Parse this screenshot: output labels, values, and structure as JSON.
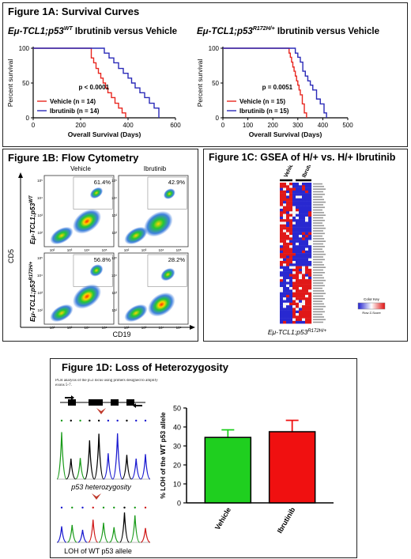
{
  "fig1a": {
    "title": "Figure 1A: Survival Curves",
    "left": {
      "heading_prefix": "Eμ-TCL1;p53",
      "heading_sup": "WT",
      "heading_rest": " Ibrutinib versus Vehicle",
      "pvalue": "p < 0.0001",
      "ylabel": "Percent survival",
      "xlabel": "Overall Survival (Days)",
      "xticks": [
        "0",
        "200",
        "400",
        "600"
      ],
      "yticks": [
        "0",
        "50",
        "100"
      ],
      "legend": [
        {
          "label": "Vehicle (n = 14)",
          "color": "#e8261f"
        },
        {
          "label": "Ibrutinib (n = 14)",
          "color": "#2a2ab8"
        }
      ]
    },
    "right": {
      "heading_prefix": "Eμ-TCL1;p53",
      "heading_sup": "R172H/+",
      "heading_rest": " Ibrutinib versus Vehicle",
      "pvalue": "p = 0.0051",
      "ylabel": "Percent survival",
      "xlabel": "Overall Survival (Days)",
      "xticks": [
        "0",
        "100",
        "200",
        "300",
        "400",
        "500"
      ],
      "yticks": [
        "0",
        "50",
        "100"
      ],
      "legend": [
        {
          "label": "Vehicle (n = 15)",
          "color": "#e8261f"
        },
        {
          "label": "Ibrutinib (n = 15)",
          "color": "#2a2ab8"
        }
      ]
    }
  },
  "chart_data": [
    {
      "type": "line",
      "title": "Eμ-TCL1;p53WT Ibrutinib versus Vehicle",
      "xlabel": "Overall Survival (Days)",
      "ylabel": "Percent survival",
      "xlim": [
        0,
        600
      ],
      "ylim": [
        0,
        100
      ],
      "series": [
        {
          "name": "Vehicle (n = 14)",
          "color": "#e8261f",
          "x": [
            0,
            240,
            245,
            255,
            265,
            275,
            285,
            295,
            305,
            315,
            330,
            345,
            360,
            375,
            390
          ],
          "y": [
            100,
            100,
            86,
            79,
            71,
            64,
            57,
            50,
            43,
            36,
            29,
            21,
            14,
            7,
            0
          ]
        },
        {
          "name": "Ibrutinib (n = 14)",
          "color": "#2a2ab8",
          "x": [
            0,
            280,
            300,
            320,
            340,
            360,
            380,
            400,
            415,
            430,
            450,
            470,
            490,
            510,
            530
          ],
          "y": [
            100,
            100,
            93,
            86,
            79,
            71,
            64,
            57,
            50,
            43,
            36,
            29,
            21,
            14,
            0
          ]
        }
      ]
    },
    {
      "type": "line",
      "title": "Eμ-TCL1;p53R172H/+ Ibrutinib versus Vehicle",
      "xlabel": "Overall Survival (Days)",
      "ylabel": "Percent survival",
      "xlim": [
        0,
        500
      ],
      "ylim": [
        0,
        100
      ],
      "series": [
        {
          "name": "Vehicle (n = 15)",
          "color": "#e8261f",
          "x": [
            0,
            260,
            265,
            270,
            275,
            280,
            285,
            290,
            295,
            300,
            305,
            310,
            318,
            326,
            335
          ],
          "y": [
            100,
            100,
            93,
            87,
            80,
            73,
            67,
            60,
            53,
            47,
            40,
            33,
            20,
            7,
            0
          ]
        },
        {
          "name": "Ibrutinib (n = 15)",
          "color": "#2a2ab8",
          "x": [
            0,
            280,
            290,
            300,
            310,
            320,
            330,
            340,
            350,
            360,
            375,
            390,
            405,
            415
          ],
          "y": [
            100,
            100,
            93,
            87,
            80,
            67,
            60,
            53,
            47,
            40,
            27,
            20,
            7,
            0
          ]
        }
      ]
    },
    {
      "type": "bar",
      "title": "",
      "categories": [
        "Vehicle",
        "Ibrutinib"
      ],
      "values": [
        34.5,
        37.5
      ],
      "errors": [
        4,
        6
      ],
      "colors": [
        "#1fcf1f",
        "#f01010"
      ],
      "ylabel": "% LOH of the WT p53 allele",
      "ylim": [
        0,
        50
      ],
      "yticks": [
        "0",
        "10",
        "20",
        "30",
        "40",
        "50"
      ]
    }
  ],
  "fig1b": {
    "title": "Figure 1B: Flow Cytometry",
    "col_labels": [
      "Vehicle",
      "Ibrutinib"
    ],
    "percents": [
      "61.4%",
      "42.9%",
      "56.8%",
      "28.2%"
    ],
    "row_labels": [
      {
        "prefix": "Eμ-TCL1;p53",
        "sup": "WT"
      },
      {
        "prefix": "Eμ-TCL1;p53",
        "sup": "R172H/+"
      }
    ],
    "ylabel": "CD5",
    "xlabel": "CD19"
  },
  "fig1c": {
    "title": "Figure 1C: GSEA of H/+ vs. H/+ Ibrutinib",
    "col_labels": [
      "Vehicle",
      "Ibrutinib"
    ],
    "key_title": "Color Key",
    "key_label": "Row Z-Score",
    "footer_prefix": "Eμ-TCL1;p53",
    "footer_sup": "R172H/+"
  },
  "fig1d": {
    "title": "Figure 1D: Loss of Heterozygosity",
    "pcr_note": "PCR analysis of the p53 locus using primers designed to amplify exons 5-7.",
    "label_het": "p53 heterozygosity",
    "label_loh": "LOH of WT p53 allele"
  }
}
